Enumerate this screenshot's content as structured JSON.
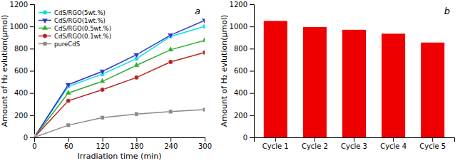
{
  "chart_data": [
    {
      "type": "line",
      "xlabel": "Irradiation time (min)",
      "ylabel": "Amount of H₂ evlution(μmol)",
      "annotations": [
        "a"
      ],
      "x": [
        0,
        60,
        120,
        180,
        240,
        300
      ],
      "series": [
        {
          "name": "CdS/RGO(5wt.%)",
          "color": "#00e0e0",
          "marker": "circle",
          "values": [
            0,
            460,
            570,
            710,
            910,
            1000
          ]
        },
        {
          "name": "CdS/RGO(1wt.%)",
          "color": "#3333cc",
          "marker": "triangle-down",
          "values": [
            0,
            475,
            595,
            745,
            922,
            1055
          ]
        },
        {
          "name": "CdS/RGO(0.5wt.%)",
          "color": "#33aa33",
          "marker": "triangle-up",
          "values": [
            0,
            400,
            505,
            650,
            790,
            875
          ]
        },
        {
          "name": "CdS/RGO(0.1wt.%)",
          "color": "#bb2222",
          "marker": "circle",
          "values": [
            0,
            330,
            430,
            540,
            680,
            765
          ]
        },
        {
          "name": "pureCdS",
          "color": "#888888",
          "marker": "square",
          "values": [
            0,
            110,
            178,
            210,
            232,
            250
          ]
        }
      ],
      "xlim": [
        0,
        300
      ],
      "ylim": [
        0,
        1200
      ],
      "xticks": [
        0,
        60,
        120,
        180,
        240,
        300
      ],
      "yticks": [
        0,
        200,
        400,
        600,
        800,
        1000,
        1200
      ],
      "legend": "top-left",
      "grid": false
    },
    {
      "type": "bar",
      "ylabel": "Amount of H₂ evlution(μmol)",
      "annotations": [
        "b"
      ],
      "categories": [
        "Cycle 1",
        "Cycle 2",
        "Cycle 3",
        "Cycle 4",
        "Cycle 5"
      ],
      "values": [
        1050,
        995,
        970,
        935,
        855
      ],
      "color": "#ee0000",
      "ylim": [
        0,
        1200
      ],
      "yticks": [
        0,
        200,
        400,
        600,
        800,
        1000,
        1200
      ],
      "grid": false
    }
  ]
}
